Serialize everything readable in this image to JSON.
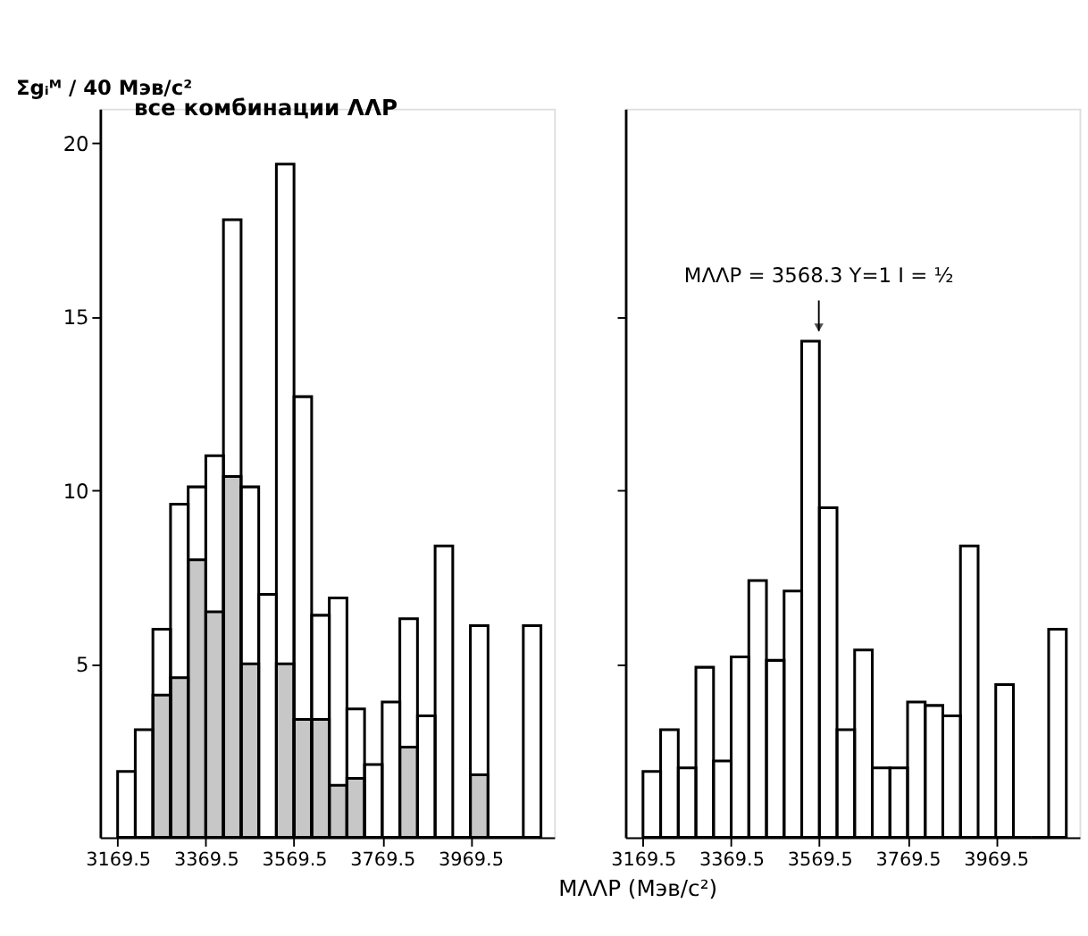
{
  "chart_data": [
    {
      "type": "histogram",
      "title": "все комбинации ΛΛР",
      "ylabel": "Σgᵢᴹ / 40 Мэв/c²",
      "bins": [
        3169.5,
        3209.5,
        3249.5,
        3289.5,
        3329.5,
        3369.5,
        3409.5,
        3449.5,
        3489.5,
        3529.5,
        3569.5,
        3609.5,
        3649.5,
        3689.5,
        3729.5,
        3769.5,
        3809.5,
        3849.5,
        3889.5,
        3929.5,
        3969.5,
        4009.5,
        4049.5,
        4089.5,
        4129.5
      ],
      "series": [
        {
          "color": "#000000",
          "values": [
            1.9,
            3.1,
            6.0,
            9.6,
            10.1,
            11.0,
            17.8,
            10.1,
            7.0,
            19.4,
            12.7,
            6.4,
            6.9,
            3.7,
            2.1,
            3.9,
            6.3,
            3.5,
            8.4,
            0,
            6.1,
            0,
            0,
            6.1
          ]
        },
        {
          "color": "#000000",
          "values": [
            0,
            0,
            4.1,
            4.6,
            8.0,
            6.5,
            10.4,
            5.0,
            0,
            5.0,
            3.4,
            3.4,
            1.5,
            1.7,
            0,
            0,
            2.6,
            0,
            0,
            0,
            1.8,
            0,
            0,
            0
          ]
        }
      ],
      "xlim": [
        3129.5,
        4159.5
      ],
      "xticks": [
        3169.5,
        3369.5,
        3569.5,
        3769.5,
        3969.5
      ],
      "ylim": [
        0,
        21
      ],
      "yticks": [
        5,
        10,
        15,
        20
      ],
      "grid": false
    },
    {
      "type": "histogram",
      "xlabel": "MΛΛР (Мэв/c²)",
      "bins": [
        3169.5,
        3209.5,
        3249.5,
        3289.5,
        3329.5,
        3369.5,
        3409.5,
        3449.5,
        3489.5,
        3529.5,
        3569.5,
        3609.5,
        3649.5,
        3689.5,
        3729.5,
        3769.5,
        3809.5,
        3849.5,
        3889.5,
        3929.5,
        3969.5,
        4009.5,
        4049.5,
        4089.5,
        4129.5
      ],
      "series": [
        {
          "color": "#000000",
          "values": [
            1.9,
            3.1,
            2.0,
            4.9,
            2.2,
            5.2,
            7.4,
            5.1,
            7.1,
            14.3,
            9.5,
            3.1,
            5.4,
            2.0,
            2.0,
            3.9,
            3.8,
            3.5,
            8.4,
            0,
            4.4,
            0,
            0,
            6.0
          ]
        }
      ],
      "annotations": [
        {
          "text": "MΛΛР = 3568.3  Y=1   I = ½",
          "x": 3568.3,
          "y": 14.3
        }
      ],
      "xlim": [
        3129.5,
        4159.5
      ],
      "xticks": [
        3169.5,
        3369.5,
        3569.5,
        3769.5,
        3969.5
      ],
      "ylim": [
        0,
        21
      ],
      "yticks": [
        {
          "value": 5,
          "label": null
        },
        {
          "value": 10,
          "label": null
        },
        {
          "value": 15,
          "label": null
        }
      ],
      "tick_labels": "x",
      "grid": false
    }
  ]
}
